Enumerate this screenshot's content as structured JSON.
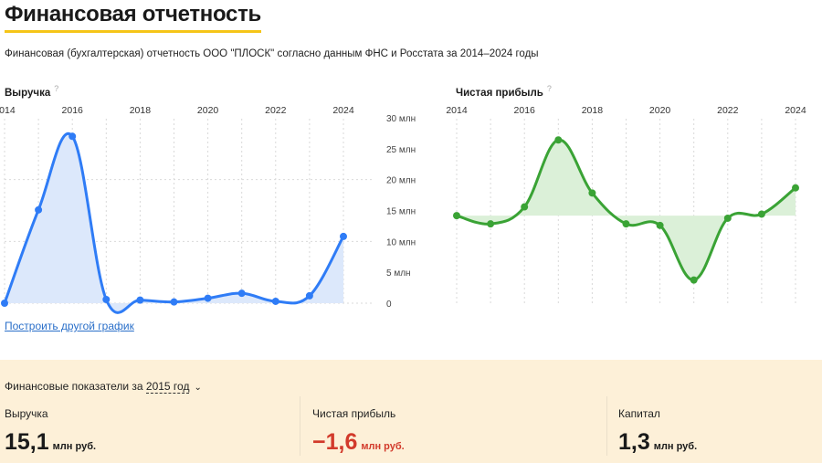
{
  "header": {
    "title": "Финансовая отчетность",
    "subtitle": "Финансовая (бухгалтерская) отчетность ООО \"ПЛОСК\" согласно данным ФНС и Росстата за 2014–2024 годы"
  },
  "revenue_chart": {
    "title": "Выручка",
    "help": "?"
  },
  "profit_chart": {
    "title": "Чистая прибыль",
    "help": "?"
  },
  "another_chart_link": "Построить другой график",
  "indicators": {
    "label": "Финансовые показатели за",
    "year": "2015 год",
    "revenue": {
      "label": "Выручка",
      "value": "15,1",
      "unit": "млн руб."
    },
    "net_profit": {
      "label": "Чистая прибыль",
      "value": "−1,6",
      "unit": "млн руб."
    },
    "capital": {
      "label": "Капитал",
      "value": "1,3",
      "unit": "млн руб."
    }
  },
  "colors": {
    "revenue": "#2f7cf6",
    "revenue_fill": "#dce8fb",
    "profit": "#3aa335",
    "profit_fill": "#dbf0d8",
    "accent": "#f5c518",
    "negative": "#d23a2b",
    "panel_bg": "#fdf0d8"
  },
  "chart_data": [
    {
      "type": "area",
      "title": "Выручка",
      "x": [
        2014,
        2015,
        2016,
        2017,
        2018,
        2019,
        2020,
        2021,
        2022,
        2023,
        2024
      ],
      "x_tick_labels": [
        "2014",
        "2016",
        "2018",
        "2020",
        "2022",
        "2024"
      ],
      "series": [
        {
          "values": [
            0.0,
            15.1,
            27.0,
            0.6,
            0.5,
            0.2,
            0.8,
            1.6,
            0.3,
            1.2,
            10.8
          ]
        }
      ],
      "ylim": [
        0,
        30
      ],
      "y_ticks": [
        0,
        5,
        10,
        15,
        20,
        25,
        30
      ],
      "y_tick_labels": [
        "0",
        "5 млн",
        "10 млн",
        "15 млн",
        "20 млн",
        "25 млн",
        "30 млн"
      ],
      "grid": true
    },
    {
      "type": "area",
      "title": "Чистая прибыль",
      "x": [
        2014,
        2015,
        2016,
        2017,
        2018,
        2019,
        2020,
        2021,
        2022,
        2023,
        2024
      ],
      "x_tick_labels": [
        "2014",
        "2016",
        "2018",
        "2020",
        "2022",
        "2024"
      ],
      "series": [
        {
          "values": [
            0.0,
            -1.6,
            1.7,
            14.7,
            4.4,
            -1.6,
            -1.9,
            -12.5,
            -0.5,
            0.3,
            5.4
          ]
        }
      ],
      "baseline": 0,
      "grid": true
    }
  ]
}
